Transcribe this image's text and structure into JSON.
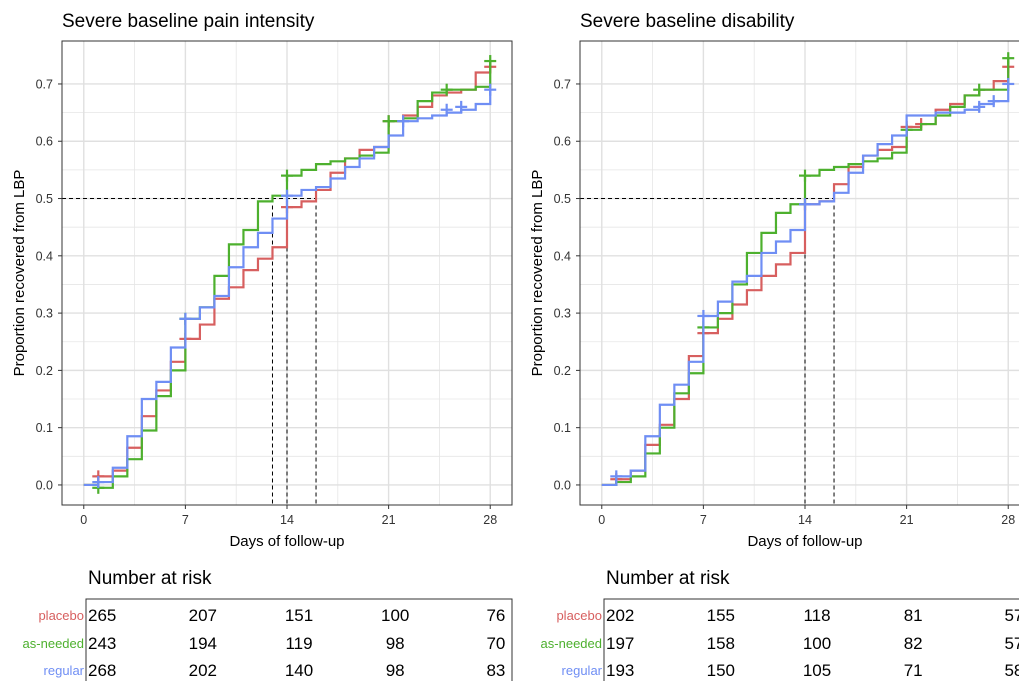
{
  "colors": {
    "placebo": "#D75F5F",
    "as-needed": "#4DB02E",
    "regular": "#6F8EF4",
    "grid": "#e6e6e6",
    "frame": "#333333"
  },
  "risk_table_title": "Number at risk",
  "strata": [
    "placebo",
    "as-needed",
    "regular"
  ],
  "chart_data": [
    {
      "type": "line",
      "step": true,
      "title": "Severe baseline pain intensity",
      "xlabel": "Days of follow-up",
      "ylabel": "Proportion recovered from LBP",
      "xlim": [
        -1.5,
        29.5
      ],
      "ylim": [
        -0.035,
        0.775
      ],
      "xticks": [
        0,
        7,
        14,
        21,
        28
      ],
      "yticks": [
        0.0,
        0.1,
        0.2,
        0.3,
        0.4,
        0.5,
        0.6,
        0.7
      ],
      "ytick_labels": [
        "0.0",
        "0.1",
        "0.2",
        "0.3",
        "0.4",
        "0.5",
        "0.6",
        "0.7"
      ],
      "grid": true,
      "reference_lines": {
        "y": 0.5,
        "x_medians": [
          13,
          14,
          16
        ]
      },
      "series": [
        {
          "name": "placebo",
          "color": "#D75F5F",
          "x": [
            0,
            1,
            2,
            3,
            4,
            5,
            6,
            7,
            8,
            9,
            10,
            11,
            12,
            13,
            14,
            15,
            16,
            17,
            18,
            19,
            20,
            21,
            22,
            23,
            24,
            25,
            26,
            27,
            28
          ],
          "y": [
            0,
            0.015,
            0.025,
            0.065,
            0.12,
            0.165,
            0.215,
            0.255,
            0.28,
            0.325,
            0.345,
            0.375,
            0.395,
            0.415,
            0.485,
            0.495,
            0.515,
            0.545,
            0.57,
            0.585,
            0.59,
            0.635,
            0.645,
            0.66,
            0.68,
            0.685,
            0.69,
            0.72,
            0.73
          ],
          "censored": [
            [
              1,
              0.015
            ],
            [
              7,
              0.255
            ],
            [
              14,
              0.485
            ],
            [
              21,
              0.635
            ],
            [
              28,
              0.73
            ]
          ]
        },
        {
          "name": "as-needed",
          "color": "#4DB02E",
          "x": [
            0,
            1,
            2,
            3,
            4,
            5,
            6,
            7,
            8,
            9,
            10,
            11,
            12,
            13,
            14,
            15,
            16,
            17,
            18,
            19,
            20,
            21,
            22,
            23,
            24,
            25,
            26,
            27,
            28
          ],
          "y": [
            0,
            -0.005,
            0.015,
            0.045,
            0.095,
            0.155,
            0.2,
            0.29,
            0.31,
            0.365,
            0.42,
            0.445,
            0.495,
            0.505,
            0.54,
            0.55,
            0.56,
            0.565,
            0.57,
            0.575,
            0.58,
            0.635,
            0.64,
            0.67,
            0.685,
            0.69,
            0.69,
            0.695,
            0.74
          ],
          "censored": [
            [
              1,
              -0.005
            ],
            [
              7,
              0.29
            ],
            [
              14,
              0.54
            ],
            [
              21,
              0.635
            ],
            [
              25,
              0.69
            ],
            [
              28,
              0.74
            ]
          ]
        },
        {
          "name": "regular",
          "color": "#6F8EF4",
          "x": [
            0,
            1,
            2,
            3,
            4,
            5,
            6,
            7,
            8,
            9,
            10,
            11,
            12,
            13,
            14,
            15,
            16,
            17,
            18,
            19,
            20,
            21,
            22,
            23,
            24,
            25,
            26,
            27,
            28
          ],
          "y": [
            0,
            0.005,
            0.03,
            0.085,
            0.15,
            0.18,
            0.24,
            0.29,
            0.31,
            0.33,
            0.38,
            0.415,
            0.44,
            0.465,
            0.505,
            0.515,
            0.52,
            0.535,
            0.555,
            0.57,
            0.59,
            0.61,
            0.635,
            0.64,
            0.645,
            0.65,
            0.655,
            0.665,
            0.69
          ],
          "censored": [
            [
              1,
              0.005
            ],
            [
              7,
              0.29
            ],
            [
              14,
              0.505
            ],
            [
              22,
              0.635
            ],
            [
              25,
              0.655
            ],
            [
              26,
              0.66
            ],
            [
              28,
              0.69
            ]
          ]
        }
      ],
      "risk_table": {
        "times": [
          0,
          7,
          14,
          21,
          28
        ],
        "rows": [
          {
            "name": "placebo",
            "values": [
              "265",
              "207",
              "151",
              "100",
              "76"
            ]
          },
          {
            "name": "as-needed",
            "values": [
              "243",
              "194",
              "119",
              "98",
              "70"
            ]
          },
          {
            "name": "regular",
            "values": [
              "268",
              "202",
              "140",
              "98",
              "83"
            ]
          }
        ]
      }
    },
    {
      "type": "line",
      "step": true,
      "title": "Severe baseline disability",
      "xlabel": "Days of follow-up",
      "ylabel": "Proportion recovered from LBP",
      "xlim": [
        -1.5,
        29.5
      ],
      "ylim": [
        -0.035,
        0.775
      ],
      "xticks": [
        0,
        7,
        14,
        21,
        28
      ],
      "yticks": [
        0.0,
        0.1,
        0.2,
        0.3,
        0.4,
        0.5,
        0.6,
        0.7
      ],
      "ytick_labels": [
        "0.0",
        "0.1",
        "0.2",
        "0.3",
        "0.4",
        "0.5",
        "0.6",
        "0.7"
      ],
      "grid": true,
      "reference_lines": {
        "y": 0.5,
        "x_medians": [
          14,
          16
        ]
      },
      "series": [
        {
          "name": "placebo",
          "color": "#D75F5F",
          "x": [
            0,
            1,
            2,
            3,
            4,
            5,
            6,
            7,
            8,
            9,
            10,
            11,
            12,
            13,
            14,
            15,
            16,
            17,
            18,
            19,
            20,
            21,
            22,
            23,
            24,
            25,
            26,
            27,
            28
          ],
          "y": [
            0,
            0.01,
            0.025,
            0.07,
            0.105,
            0.15,
            0.225,
            0.265,
            0.29,
            0.315,
            0.34,
            0.365,
            0.385,
            0.405,
            0.49,
            0.495,
            0.525,
            0.555,
            0.575,
            0.585,
            0.59,
            0.625,
            0.63,
            0.655,
            0.665,
            0.68,
            0.69,
            0.705,
            0.73
          ],
          "censored": [
            [
              1,
              0.01
            ],
            [
              7,
              0.265
            ],
            [
              14,
              0.49
            ],
            [
              21,
              0.625
            ],
            [
              22,
              0.63
            ],
            [
              28,
              0.73
            ]
          ]
        },
        {
          "name": "as-needed",
          "color": "#4DB02E",
          "x": [
            0,
            1,
            2,
            3,
            4,
            5,
            6,
            7,
            8,
            9,
            10,
            11,
            12,
            13,
            14,
            15,
            16,
            17,
            18,
            19,
            20,
            21,
            22,
            23,
            24,
            25,
            26,
            27,
            28
          ],
          "y": [
            0,
            0.005,
            0.015,
            0.055,
            0.1,
            0.16,
            0.195,
            0.275,
            0.3,
            0.35,
            0.405,
            0.44,
            0.475,
            0.49,
            0.54,
            0.55,
            0.555,
            0.56,
            0.565,
            0.57,
            0.58,
            0.62,
            0.63,
            0.645,
            0.66,
            0.68,
            0.69,
            0.69,
            0.745
          ],
          "censored": [
            [
              7,
              0.275
            ],
            [
              14,
              0.54
            ],
            [
              21,
              0.62
            ],
            [
              26,
              0.69
            ],
            [
              28,
              0.745
            ]
          ]
        },
        {
          "name": "regular",
          "color": "#6F8EF4",
          "x": [
            0,
            1,
            2,
            3,
            4,
            5,
            6,
            7,
            8,
            9,
            10,
            11,
            12,
            13,
            14,
            15,
            16,
            17,
            18,
            19,
            20,
            21,
            22,
            23,
            24,
            25,
            26,
            27,
            28
          ],
          "y": [
            0,
            0.015,
            0.025,
            0.085,
            0.14,
            0.175,
            0.215,
            0.295,
            0.32,
            0.355,
            0.365,
            0.405,
            0.425,
            0.445,
            0.49,
            0.495,
            0.51,
            0.545,
            0.575,
            0.595,
            0.61,
            0.645,
            0.645,
            0.65,
            0.65,
            0.655,
            0.665,
            0.67,
            0.7
          ],
          "censored": [
            [
              1,
              0.015
            ],
            [
              7,
              0.295
            ],
            [
              14,
              0.49
            ],
            [
              26,
              0.66
            ],
            [
              27,
              0.67
            ],
            [
              28,
              0.7
            ]
          ]
        }
      ],
      "risk_table": {
        "times": [
          0,
          7,
          14,
          21,
          28
        ],
        "rows": [
          {
            "name": "placebo",
            "values": [
              "202",
              "155",
              "118",
              "81",
              "57"
            ]
          },
          {
            "name": "as-needed",
            "values": [
              "197",
              "158",
              "100",
              "82",
              "57"
            ]
          },
          {
            "name": "regular",
            "values": [
              "193",
              "150",
              "105",
              "71",
              "58"
            ]
          }
        ]
      }
    }
  ]
}
